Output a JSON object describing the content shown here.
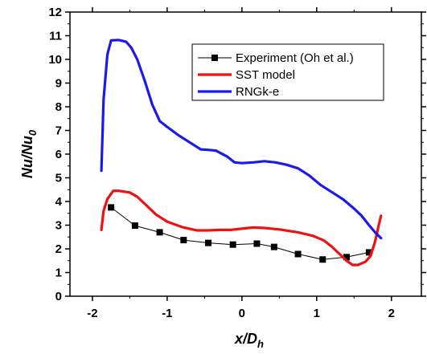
{
  "chart_data": {
    "type": "line",
    "xlabel": {
      "main": "x/D",
      "sub": "h"
    },
    "ylabel": {
      "main": "Nu/Nu",
      "sub": "0"
    },
    "xlim": [
      -2.3,
      2.4
    ],
    "ylim": [
      0,
      12
    ],
    "xticks": [
      -2,
      -1,
      0,
      1,
      2
    ],
    "yticks": [
      0,
      1,
      2,
      3,
      4,
      5,
      6,
      7,
      8,
      9,
      10,
      11,
      12
    ],
    "grid": false,
    "legend_position": "top-right",
    "series": [
      {
        "name": "Experiment (Oh et al.)",
        "color": "#000000",
        "marker": "square",
        "points": [
          [
            -1.75,
            3.75
          ],
          [
            -1.43,
            2.98
          ],
          [
            -1.1,
            2.7
          ],
          [
            -0.78,
            2.37
          ],
          [
            -0.45,
            2.25
          ],
          [
            -0.12,
            2.18
          ],
          [
            0.2,
            2.22
          ],
          [
            0.43,
            2.08
          ],
          [
            0.75,
            1.78
          ],
          [
            1.08,
            1.55
          ],
          [
            1.4,
            1.65
          ],
          [
            1.7,
            1.85
          ]
        ]
      },
      {
        "name": "SST model",
        "color": "#ee1111",
        "marker": "none",
        "points": [
          [
            -1.88,
            2.8
          ],
          [
            -1.85,
            3.6
          ],
          [
            -1.8,
            4.1
          ],
          [
            -1.72,
            4.45
          ],
          [
            -1.65,
            4.45
          ],
          [
            -1.5,
            4.38
          ],
          [
            -1.4,
            4.2
          ],
          [
            -1.3,
            3.9
          ],
          [
            -1.15,
            3.45
          ],
          [
            -1.0,
            3.15
          ],
          [
            -0.8,
            2.92
          ],
          [
            -0.6,
            2.78
          ],
          [
            -0.45,
            2.78
          ],
          [
            -0.3,
            2.8
          ],
          [
            -0.15,
            2.8
          ],
          [
            0.0,
            2.85
          ],
          [
            0.15,
            2.9
          ],
          [
            0.3,
            2.88
          ],
          [
            0.5,
            2.82
          ],
          [
            0.75,
            2.7
          ],
          [
            0.95,
            2.55
          ],
          [
            1.1,
            2.35
          ],
          [
            1.2,
            2.1
          ],
          [
            1.3,
            1.8
          ],
          [
            1.4,
            1.5
          ],
          [
            1.48,
            1.32
          ],
          [
            1.55,
            1.32
          ],
          [
            1.65,
            1.45
          ],
          [
            1.72,
            1.7
          ],
          [
            1.78,
            2.3
          ],
          [
            1.83,
            3.0
          ],
          [
            1.86,
            3.4
          ]
        ]
      },
      {
        "name": "RNGk-e",
        "color": "#1a1aee",
        "marker": "none",
        "points": [
          [
            -1.88,
            5.3
          ],
          [
            -1.85,
            8.3
          ],
          [
            -1.8,
            10.2
          ],
          [
            -1.75,
            10.8
          ],
          [
            -1.65,
            10.82
          ],
          [
            -1.55,
            10.75
          ],
          [
            -1.48,
            10.5
          ],
          [
            -1.4,
            10.0
          ],
          [
            -1.3,
            9.1
          ],
          [
            -1.2,
            8.1
          ],
          [
            -1.1,
            7.4
          ],
          [
            -1.0,
            7.15
          ],
          [
            -0.85,
            6.8
          ],
          [
            -0.7,
            6.5
          ],
          [
            -0.55,
            6.2
          ],
          [
            -0.45,
            6.18
          ],
          [
            -0.35,
            6.15
          ],
          [
            -0.2,
            5.9
          ],
          [
            -0.1,
            5.65
          ],
          [
            0.0,
            5.62
          ],
          [
            0.15,
            5.65
          ],
          [
            0.3,
            5.7
          ],
          [
            0.45,
            5.65
          ],
          [
            0.6,
            5.55
          ],
          [
            0.75,
            5.4
          ],
          [
            0.9,
            5.1
          ],
          [
            1.05,
            4.7
          ],
          [
            1.2,
            4.4
          ],
          [
            1.35,
            4.1
          ],
          [
            1.5,
            3.7
          ],
          [
            1.6,
            3.4
          ],
          [
            1.7,
            3.0
          ],
          [
            1.78,
            2.7
          ],
          [
            1.86,
            2.45
          ]
        ]
      }
    ]
  }
}
